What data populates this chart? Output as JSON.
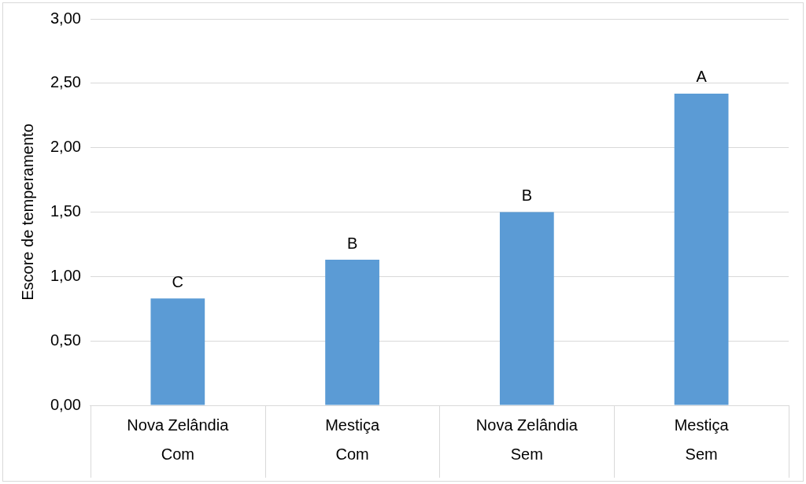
{
  "chart_data": {
    "type": "bar",
    "ylabel": "Escore de temperamento",
    "categories": [
      "Nova Zelândia\nCom",
      "Mestiça\nCom",
      "Nova Zelândia\nSem",
      "Mestiça\nSem"
    ],
    "values": [
      0.83,
      1.13,
      1.5,
      2.42
    ],
    "color": "#5b9bd5",
    "ylim": [
      0,
      3
    ],
    "yticks": [
      {
        "value": 0,
        "label": "0,00"
      },
      {
        "value": 0.5,
        "label": "0,50"
      },
      {
        "value": 1,
        "label": "1,00"
      },
      {
        "value": 1.5,
        "label": "1,50"
      },
      {
        "value": 2,
        "label": "2,00"
      },
      {
        "value": 2.5,
        "label": "2,50"
      },
      {
        "value": 3,
        "label": "3,00"
      }
    ],
    "grid": "y",
    "legend": false,
    "annotations": [
      {
        "text": "C",
        "x": "Nova Zelândia\nCom",
        "y": 0.83
      },
      {
        "text": "B",
        "x": "Mestiça\nCom",
        "y": 1.13
      },
      {
        "text": "B",
        "x": "Nova Zelândia\nSem",
        "y": 1.5
      },
      {
        "text": "A",
        "x": "Mestiça\nSem",
        "y": 2.42
      }
    ]
  }
}
